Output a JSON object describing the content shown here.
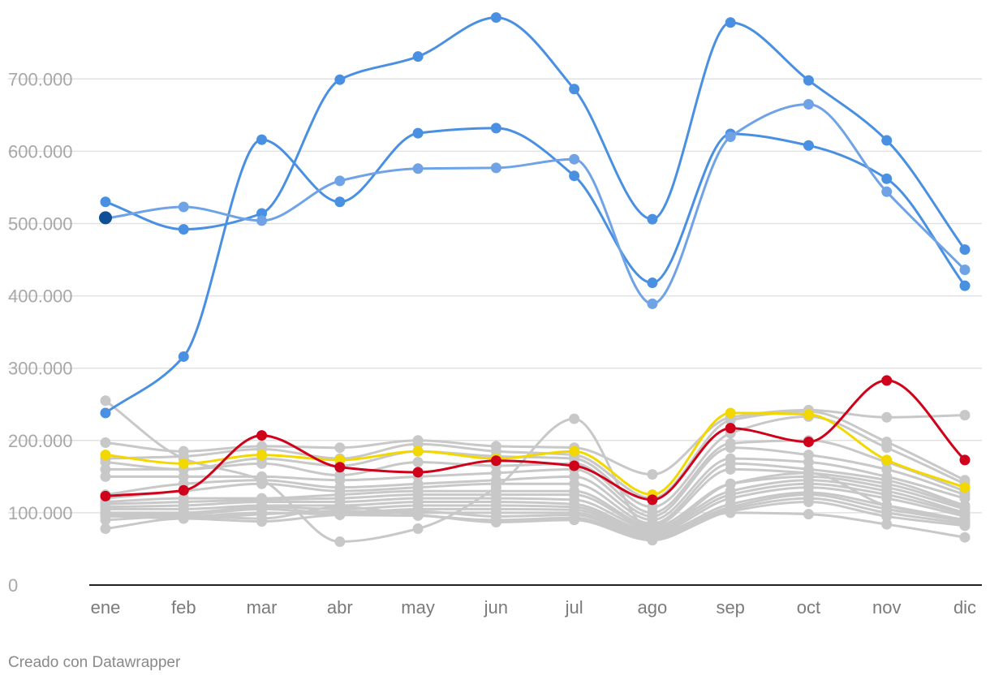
{
  "chart_data": {
    "type": "line",
    "categories": [
      "ene",
      "feb",
      "mar",
      "abr",
      "may",
      "jun",
      "jul",
      "ago",
      "sep",
      "oct",
      "nov",
      "dic"
    ],
    "ylim": [
      0,
      790000
    ],
    "yticks": [
      0,
      100000,
      200000,
      300000,
      400000,
      500000,
      600000,
      700000
    ],
    "ytick_labels": [
      "0",
      "100.000",
      "200.000",
      "300.000",
      "400.000",
      "500.000",
      "600.000",
      "700.000"
    ],
    "grid": true,
    "colors": {
      "blue": "#4a90e2",
      "light_blue": "#6fa3e6",
      "dark_blue": "#0e4f96",
      "red": "#d0021b",
      "yellow": "#f3d800",
      "gray": "#c8c8c8",
      "grid": "#e2e2e2",
      "axis": "#222222"
    },
    "series": [
      {
        "color": "gray",
        "values": [
          255000,
          175000,
          145000,
          60000,
          78000,
          135000,
          230000,
          75000,
          140000,
          155000,
          110000,
          90000
        ]
      },
      {
        "color": "gray",
        "values": [
          197000,
          185000,
          192000,
          190000,
          200000,
          192000,
          190000,
          153000,
          232000,
          242000,
          232000,
          235000
        ]
      },
      {
        "color": "gray",
        "values": [
          175000,
          178000,
          188000,
          175000,
          195000,
          185000,
          180000,
          120000,
          228000,
          240000,
          198000,
          145000
        ]
      },
      {
        "color": "gray",
        "values": [
          170000,
          160000,
          175000,
          165000,
          185000,
          178000,
          175000,
          108000,
          210000,
          233000,
          190000,
          140000
        ]
      },
      {
        "color": "gray",
        "values": [
          160000,
          160000,
          168000,
          152000,
          170000,
          165000,
          168000,
          100000,
          196000,
          200000,
          170000,
          130000
        ]
      },
      {
        "color": "gray",
        "values": [
          150000,
          150000,
          150000,
          145000,
          150000,
          155000,
          160000,
          95000,
          190000,
          180000,
          160000,
          125000
        ]
      },
      {
        "color": "gray",
        "values": [
          125000,
          140000,
          145000,
          135000,
          140000,
          145000,
          150000,
          90000,
          175000,
          170000,
          150000,
          120000
        ]
      },
      {
        "color": "gray",
        "values": [
          120000,
          130000,
          140000,
          130000,
          135000,
          140000,
          140000,
          85000,
          168000,
          160000,
          145000,
          110000
        ]
      },
      {
        "color": "gray",
        "values": [
          115000,
          120000,
          120000,
          125000,
          130000,
          130000,
          130000,
          82000,
          160000,
          155000,
          140000,
          108000
        ]
      },
      {
        "color": "gray",
        "values": [
          112000,
          115000,
          118000,
          120000,
          125000,
          125000,
          125000,
          80000,
          140000,
          150000,
          135000,
          105000
        ]
      },
      {
        "color": "gray",
        "values": [
          108000,
          110000,
          115000,
          115000,
          120000,
          120000,
          118000,
          78000,
          130000,
          145000,
          130000,
          100000
        ]
      },
      {
        "color": "gray",
        "values": [
          105000,
          105000,
          110000,
          110000,
          115000,
          115000,
          112000,
          75000,
          125000,
          140000,
          125000,
          98000
        ]
      },
      {
        "color": "gray",
        "values": [
          100000,
          100000,
          108000,
          105000,
          110000,
          110000,
          108000,
          72000,
          120000,
          135000,
          120000,
          95000
        ]
      },
      {
        "color": "gray",
        "values": [
          98000,
          98000,
          105000,
          100000,
          105000,
          105000,
          104000,
          70000,
          112000,
          128000,
          110000,
          90000
        ]
      },
      {
        "color": "gray",
        "values": [
          95000,
          95000,
          100000,
          98000,
          100000,
          100000,
          100000,
          68000,
          108000,
          125000,
          105000,
          88000
        ]
      },
      {
        "color": "gray",
        "values": [
          96000,
          92000,
          98000,
          102000,
          102000,
          95000,
          97000,
          66000,
          105000,
          120000,
          100000,
          85000
        ]
      },
      {
        "color": "gray",
        "values": [
          90000,
          95000,
          92000,
          108000,
          97000,
          90000,
          93000,
          64000,
          102000,
          115000,
          95000,
          82000
        ]
      },
      {
        "color": "gray",
        "values": [
          78000,
          92000,
          88000,
          97000,
          96000,
          87000,
          90000,
          62000,
          100000,
          98000,
          84000,
          66000
        ]
      },
      {
        "color": "yellow",
        "values": [
          180000,
          168000,
          180000,
          173000,
          185000,
          175000,
          185000,
          125000,
          238000,
          236000,
          173000,
          135000
        ]
      },
      {
        "color": "red",
        "values": [
          123000,
          131000,
          207000,
          163000,
          156000,
          172000,
          165000,
          118000,
          217000,
          198000,
          283000,
          173000
        ]
      },
      {
        "color": "blue",
        "values": [
          238000,
          316000,
          616000,
          530000,
          625000,
          632000,
          566000,
          418000,
          624000,
          608000,
          562000,
          414000
        ]
      },
      {
        "color": "blue",
        "values": [
          530000,
          492000,
          514000,
          699000,
          731000,
          785000,
          686000,
          506000,
          778000,
          698000,
          615000,
          464000
        ]
      },
      {
        "color": "light_blue",
        "values": [
          507000,
          523000,
          504000,
          559000,
          576000,
          577000,
          589000,
          389000,
          620000,
          665000,
          544000,
          436000
        ]
      }
    ],
    "highlight_point": {
      "category": "ene",
      "value": 508000,
      "color": "dark_blue"
    }
  },
  "footer": {
    "credit": "Creado con Datawrapper"
  }
}
